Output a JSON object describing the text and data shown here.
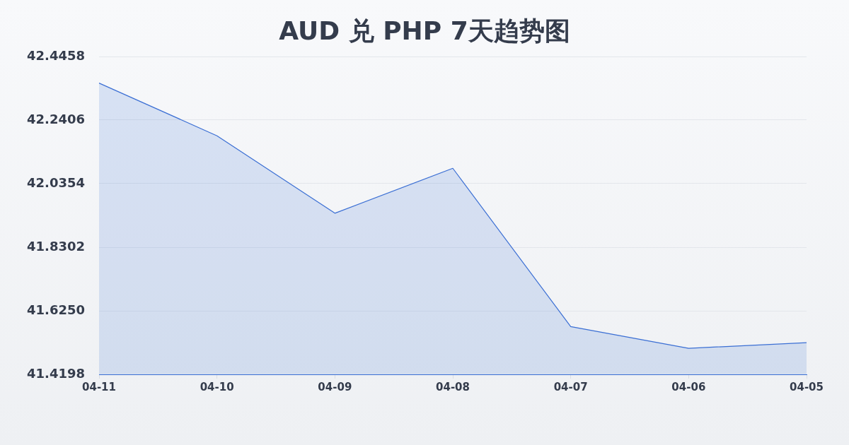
{
  "chart_data": {
    "type": "area",
    "title": "AUD 兑 PHP 7天趋势图",
    "categories": [
      "04-11",
      "04-10",
      "04-09",
      "04-08",
      "04-07",
      "04-06",
      "04-05"
    ],
    "values": [
      42.36,
      42.19,
      41.94,
      42.085,
      41.574,
      41.504,
      41.522
    ],
    "color": "#3b6fd4",
    "ylim": [
      41.4198,
      42.4458
    ],
    "yticks": [
      41.4198,
      {
        "value": 41.625,
        "label": "41.6250"
      },
      41.8302,
      42.0354,
      42.2406,
      42.4458
    ],
    "grid": "y",
    "marker": "none",
    "line_style": "solid"
  }
}
